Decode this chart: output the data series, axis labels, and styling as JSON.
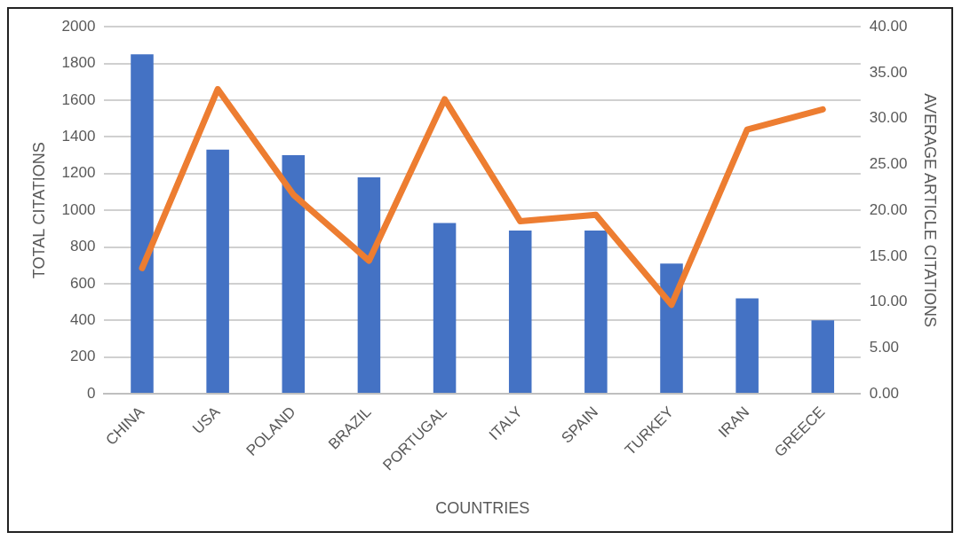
{
  "chart_data": {
    "type": "bar",
    "xlabel": "COUNTRIES",
    "ylabel": "TOTAL CITATIONS",
    "y2label": "AVERAGE ARTICLE CITATIONS",
    "categories": [
      "CHINA",
      "USA",
      "POLAND",
      "BRAZIL",
      "PORTUGAL",
      "ITALY",
      "SPAIN",
      "TURKEY",
      "IRAN",
      "GREECE"
    ],
    "series": [
      {
        "color": "#4472c4",
        "values": [
          1850,
          1330,
          1300,
          1180,
          930,
          890,
          890,
          710,
          520,
          400
        ]
      },
      {
        "type": "line",
        "axis": "y2",
        "color": "#ed7d31",
        "values": [
          13.7,
          33.2,
          21.7,
          14.5,
          32.1,
          18.8,
          19.5,
          9.7,
          28.8,
          31.0
        ]
      }
    ],
    "ylim": [
      0,
      2000
    ],
    "yticks": [
      0,
      200,
      400,
      600,
      800,
      1000,
      1200,
      1400,
      1600,
      1800,
      2000
    ],
    "y2lim": [
      0,
      40
    ],
    "y2ticks": [
      {
        "value": 0,
        "label": "0.00"
      },
      {
        "value": 5,
        "label": "5.00"
      },
      {
        "value": 10,
        "label": "10.00"
      },
      {
        "value": 15,
        "label": "15.00"
      },
      {
        "value": 20,
        "label": "20.00"
      },
      {
        "value": 25,
        "label": "25.00"
      },
      {
        "value": 30,
        "label": "30.00"
      },
      {
        "value": 35,
        "label": "35.00"
      },
      {
        "value": 40,
        "label": "40.00"
      }
    ],
    "grid": "y",
    "legend": false,
    "marker": "none",
    "line_style": "solid"
  }
}
